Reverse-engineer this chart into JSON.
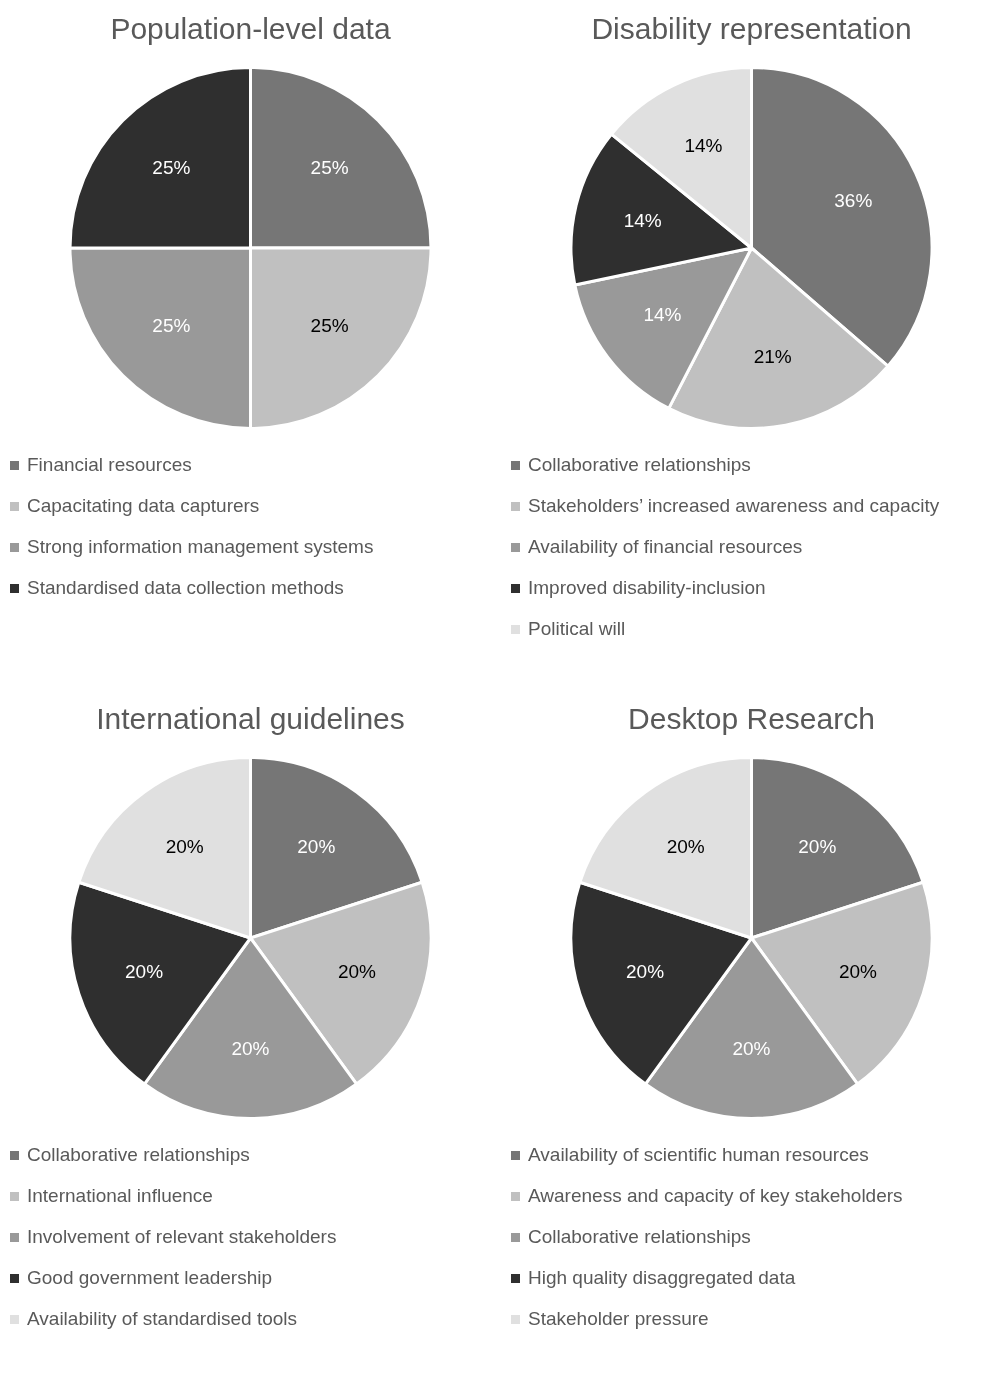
{
  "chart_data": [
    {
      "type": "pie",
      "title": "Population-level data",
      "categories": [
        "Financial resources",
        "Capacitating data capturers",
        "Strong information management systems",
        "Standardised data collection methods"
      ],
      "values": [
        25,
        25,
        25,
        25
      ],
      "colors": [
        "#767676",
        "#c0c0c0",
        "#999999",
        "#2f2f2f"
      ],
      "value_labels": [
        "25%",
        "25%",
        "25%",
        "25%"
      ],
      "legend": "bottom"
    },
    {
      "type": "pie",
      "title": "Disability representation",
      "categories": [
        "Collaborative relationships",
        "Stakeholders’ increased awareness and capacity",
        "Availability of financial resources",
        "Improved disability-inclusion",
        "Political will"
      ],
      "values": [
        36,
        21,
        14,
        14,
        14
      ],
      "colors": [
        "#767676",
        "#c0c0c0",
        "#999999",
        "#2f2f2f",
        "#e0e0e0"
      ],
      "value_labels": [
        "36%",
        "21%",
        "14%",
        "14%",
        "14%"
      ],
      "legend": "bottom"
    },
    {
      "type": "pie",
      "title": "International guidelines",
      "categories": [
        "Collaborative relationships",
        "International influence",
        "Involvement of relevant stakeholders",
        "Good government leadership",
        "Availability of standardised tools"
      ],
      "values": [
        20,
        20,
        20,
        20,
        20
      ],
      "colors": [
        "#767676",
        "#c0c0c0",
        "#999999",
        "#2f2f2f",
        "#e0e0e0"
      ],
      "value_labels": [
        "20%",
        "20%",
        "20%",
        "20%",
        "20%"
      ],
      "legend": "bottom"
    },
    {
      "type": "pie",
      "title": "Desktop Research",
      "categories": [
        "Availability of scientific human resources",
        "Awareness and capacity of key stakeholders",
        "Collaborative relationships",
        "High quality disaggregated data",
        "Stakeholder pressure"
      ],
      "values": [
        20,
        20,
        20,
        20,
        20
      ],
      "colors": [
        "#767676",
        "#c0c0c0",
        "#999999",
        "#2f2f2f",
        "#e0e0e0"
      ],
      "value_labels": [
        "20%",
        "20%",
        "20%",
        "20%",
        "20%"
      ],
      "legend": "bottom"
    }
  ]
}
